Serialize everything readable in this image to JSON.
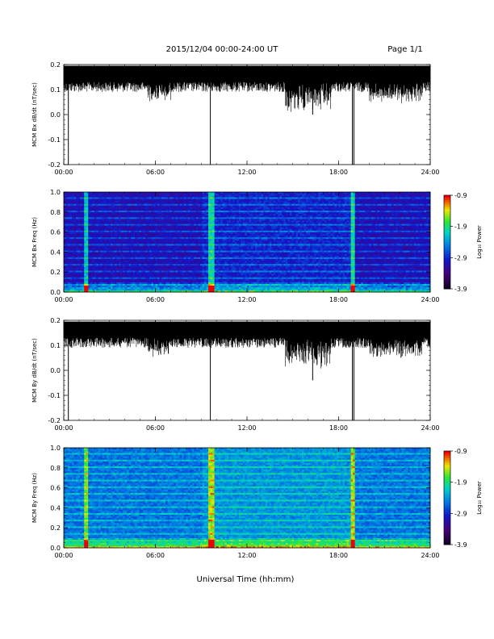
{
  "header": {
    "title": "2015/12/04  00:00-24:00 UT",
    "page": "Page 1/1"
  },
  "colorbar_ticks": [
    "-0.9",
    "-1.9",
    "-2.9",
    "-3.9"
  ],
  "colorbar_label": "Log₁₀ Power",
  "x_ticks": [
    "00:00",
    "06:00",
    "12:00",
    "18:00",
    "24:00"
  ],
  "x_label": "Universal Time (hh:mm)",
  "chart_data": [
    {
      "type": "line",
      "ylabel": "MCM Bx dB/dt (nT/sec)",
      "xlim": [
        0,
        24
      ],
      "ylim": [
        -0.2,
        0.2
      ],
      "yticks": [
        "0.2",
        "0.1",
        "0.0",
        "-0.1",
        "-0.2"
      ],
      "x_ticks": [
        "00:00",
        "06:00",
        "12:00",
        "18:00",
        "24:00"
      ],
      "baseline": 0.16,
      "spikes": [
        {
          "x": 0.3,
          "y": -0.2
        },
        {
          "x": 9.6,
          "y": -0.2
        },
        {
          "x": 16.3,
          "y": 0.0
        },
        {
          "x": 18.9,
          "y": -0.2
        },
        {
          "x": 19.0,
          "y": -0.2
        }
      ]
    },
    {
      "type": "heatmap",
      "ylabel": "MCM Bx Freq (Hz)",
      "xlim": [
        0,
        24
      ],
      "ylim": [
        0,
        1.0
      ],
      "yticks": [
        "1.0",
        "0.8",
        "0.6",
        "0.4",
        "0.2",
        "0.0"
      ],
      "x_ticks": [
        "00:00",
        "06:00",
        "12:00",
        "18:00",
        "24:00"
      ],
      "colorbar_range": [
        -3.9,
        -0.9
      ],
      "colorbar_label": "Log₁₀ Power",
      "intense_times": [
        1.4,
        9.6,
        18.9
      ]
    },
    {
      "type": "line",
      "ylabel": "MCM By dB/dt (nT/sec)",
      "xlim": [
        0,
        24
      ],
      "ylim": [
        -0.2,
        0.2
      ],
      "yticks": [
        "0.2",
        "0.1",
        "0.0",
        "-0.1",
        "-0.2"
      ],
      "x_ticks": [
        "00:00",
        "06:00",
        "12:00",
        "18:00",
        "24:00"
      ],
      "baseline": 0.16,
      "spikes": [
        {
          "x": 0.3,
          "y": -0.2
        },
        {
          "x": 9.6,
          "y": -0.2
        },
        {
          "x": 16.3,
          "y": -0.04
        },
        {
          "x": 18.9,
          "y": -0.2
        },
        {
          "x": 19.0,
          "y": -0.2
        }
      ]
    },
    {
      "type": "heatmap",
      "ylabel": "MCM By Freq (Hz)",
      "xlim": [
        0,
        24
      ],
      "ylim": [
        0,
        1.0
      ],
      "yticks": [
        "1.0",
        "0.8",
        "0.6",
        "0.4",
        "0.2",
        "0.0"
      ],
      "x_ticks": [
        "00:00",
        "06:00",
        "12:00",
        "18:00",
        "24:00"
      ],
      "colorbar_range": [
        -3.9,
        -0.9
      ],
      "colorbar_label": "Log₁₀ Power",
      "intense_times": [
        1.4,
        9.6,
        18.9
      ]
    }
  ]
}
